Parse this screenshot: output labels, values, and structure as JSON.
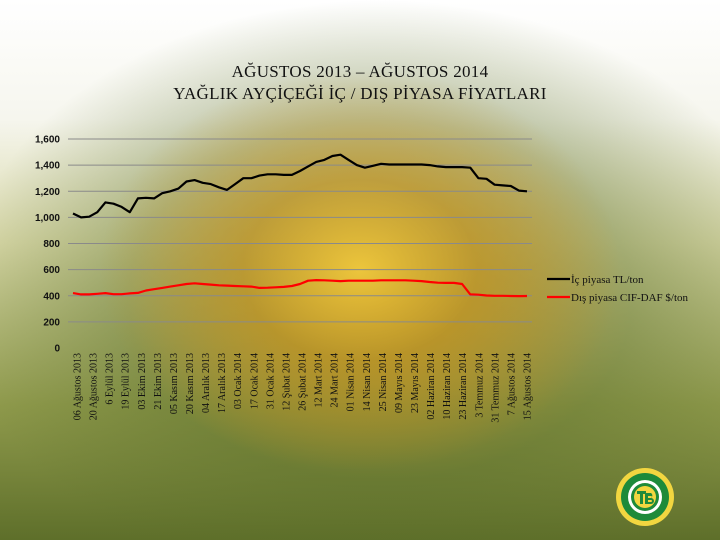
{
  "chart_data": {
    "type": "line",
    "title": "AĞUSTOS 2013 – AĞUSTOS 2014",
    "subtitle": "YAĞLIK  AYÇİÇEĞİ İÇ / DIŞ PİYASA  FİYATLARI",
    "xlabel": "",
    "ylabel": "",
    "ylim": [
      0,
      1600
    ],
    "yticks": [
      "0",
      "200",
      "400",
      "600",
      "800",
      "1,000",
      "1,200",
      "1,400",
      "1,600"
    ],
    "ytick_values": [
      0,
      200,
      400,
      600,
      800,
      1000,
      1200,
      1400,
      1600
    ],
    "grid": "horizontal",
    "legend_position": "right",
    "x_tick_labels": [
      "06 Ağustos 2013",
      "20 Ağustos 2013",
      "6 Eylül 2013",
      "19 Eylül 2013",
      "03 Ekim 2013",
      "21 Ekim 2013",
      "05 Kasım 2013",
      "20 Kasım 2013",
      "04 Aralık 2013",
      "17 Aralık 2013",
      "03 Ocak 2014",
      "17 Ocak 2014",
      "31 Ocak 2014",
      "12 Şubat 2014",
      "26 Şubat 2014",
      "12 Mart 2014",
      "24 Mart 2014",
      "01 Nisan 2014",
      "14 Nisan 2014",
      "25 Nisan 2014",
      "09 Mayıs 2014",
      "23 Mayıs 2014",
      "02 Haziran 2014",
      "10 Haziran 2014",
      "23 Haziran 2014",
      "3 Temmuz 2014",
      "31 Temmuz 2014",
      "7 Ağustos 2014",
      "15 Ağustos 2014"
    ],
    "series": [
      {
        "name": "İç piyasa TL/ton",
        "color": "#000000",
        "values": [
          1030,
          1000,
          1005,
          1040,
          1115,
          1105,
          1080,
          1040,
          1145,
          1150,
          1145,
          1185,
          1200,
          1220,
          1275,
          1285,
          1265,
          1255,
          1230,
          1210,
          1255,
          1300,
          1300,
          1320,
          1330,
          1330,
          1325,
          1325,
          1355,
          1390,
          1425,
          1440,
          1470,
          1480,
          1440,
          1400,
          1380,
          1395,
          1410,
          1405,
          1405,
          1405,
          1405,
          1405,
          1400,
          1390,
          1385,
          1385,
          1385,
          1380,
          1300,
          1295,
          1250,
          1245,
          1240,
          1205,
          1200
        ]
      },
      {
        "name": "Dış piyasa CIF-DAF $/ton",
        "color": "#ff0000",
        "values": [
          420,
          410,
          410,
          415,
          420,
          412,
          412,
          418,
          422,
          440,
          450,
          460,
          470,
          480,
          490,
          495,
          490,
          485,
          480,
          478,
          475,
          472,
          470,
          460,
          462,
          465,
          468,
          475,
          490,
          515,
          520,
          518,
          515,
          512,
          515,
          515,
          515,
          515,
          518,
          518,
          518,
          518,
          515,
          512,
          505,
          500,
          498,
          498,
          490,
          410,
          408,
          402,
          400,
          400,
          398,
          397,
          398
        ]
      }
    ]
  }
}
